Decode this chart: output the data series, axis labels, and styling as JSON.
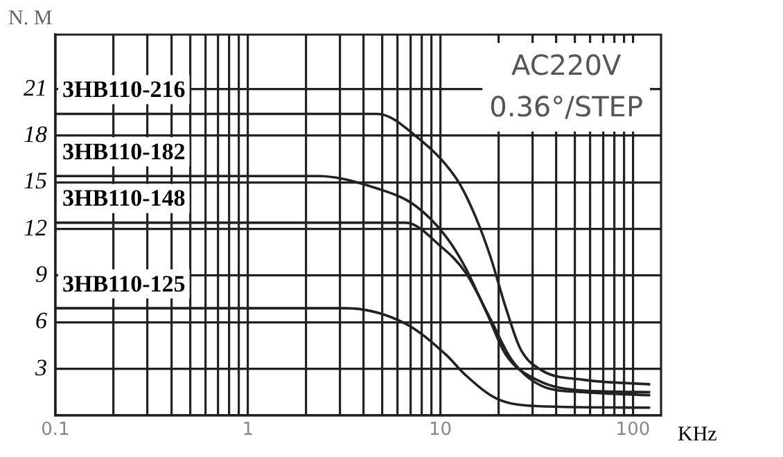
{
  "chart_data": {
    "type": "line",
    "xlabel": "KHz",
    "ylabel": "N. M",
    "log": "x",
    "grid": true,
    "legend": false,
    "marker": "none",
    "line_style": "solid",
    "annotations": [
      "AC220V",
      "0.36°/STEP"
    ],
    "xlim": [
      0.1,
      140
    ],
    "ylim": [
      0,
      24.5
    ],
    "xticks": [
      0.1,
      {
        "value": 0.2,
        "label": null
      },
      {
        "value": 0.3,
        "label": null
      },
      {
        "value": 0.4,
        "label": null
      },
      {
        "value": 0.5,
        "label": null
      },
      {
        "value": 0.6,
        "label": null
      },
      {
        "value": 0.7,
        "label": null
      },
      {
        "value": 0.8,
        "label": null
      },
      {
        "value": 0.9,
        "label": null
      },
      1,
      {
        "value": 2,
        "label": null
      },
      {
        "value": 3,
        "label": null
      },
      {
        "value": 4,
        "label": null
      },
      {
        "value": 5,
        "label": null
      },
      {
        "value": 6,
        "label": null
      },
      {
        "value": 7,
        "label": null
      },
      {
        "value": 8,
        "label": null
      },
      {
        "value": 9,
        "label": null
      },
      10,
      {
        "value": 20,
        "label": null
      },
      {
        "value": 30,
        "label": null
      },
      {
        "value": 40,
        "label": null
      },
      {
        "value": 50,
        "label": null
      },
      {
        "value": 60,
        "label": null
      },
      {
        "value": 70,
        "label": null
      },
      {
        "value": 80,
        "label": null
      },
      {
        "value": 90,
        "label": null
      },
      100
    ],
    "yticks": [
      3,
      6,
      9,
      12,
      15,
      18,
      21
    ],
    "series": [
      {
        "name": "3HB110-216",
        "color": "#222222",
        "x": [
          0.1,
          4.7,
          7.4,
          12.3,
          15.2,
          18.2,
          21.9,
          26,
          33.6,
          55,
          123
        ],
        "values": [
          19.4,
          19.4,
          18.0,
          15.1,
          12.8,
          10.2,
          6.9,
          4.3,
          2.9,
          2.3,
          2.0
        ]
      },
      {
        "name": "3HB110-182",
        "color": "#222222",
        "x": [
          0.1,
          2.3,
          4.7,
          7.4,
          10.7,
          13.5,
          17.4,
          21.9,
          31.6,
          55,
          123
        ],
        "values": [
          15.4,
          15.4,
          14.6,
          13.5,
          11.5,
          9.5,
          6.6,
          3.9,
          2.3,
          1.6,
          1.5
        ]
      },
      {
        "name": "3HB110-148",
        "color": "#222222",
        "x": [
          0.1,
          6.6,
          10,
          13.5,
          18.2,
          23.4,
          33.6,
          55,
          123
        ],
        "values": [
          12.4,
          12.4,
          10.9,
          9.2,
          6.2,
          3.6,
          1.9,
          1.5,
          1.3
        ]
      },
      {
        "name": "3HB110-125",
        "color": "#222222",
        "x": [
          0.1,
          3.2,
          6.6,
          10.7,
          13.5,
          19.5,
          31.6,
          123
        ],
        "values": [
          6.9,
          6.9,
          5.9,
          3.9,
          2.6,
          1.1,
          0.6,
          0.5
        ]
      }
    ]
  }
}
